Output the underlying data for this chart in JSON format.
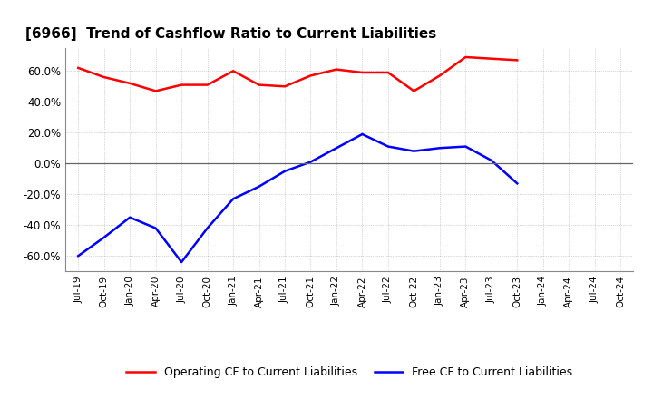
{
  "title": "[6966]  Trend of Cashflow Ratio to Current Liabilities",
  "x_labels": [
    "Jul-19",
    "Oct-19",
    "Jan-20",
    "Apr-20",
    "Jul-20",
    "Oct-20",
    "Jan-21",
    "Apr-21",
    "Jul-21",
    "Oct-21",
    "Jan-22",
    "Apr-22",
    "Jul-22",
    "Oct-22",
    "Jan-23",
    "Apr-23",
    "Jul-23",
    "Oct-23",
    "Jan-24",
    "Apr-24",
    "Jul-24",
    "Oct-24"
  ],
  "operating_cf": [
    0.62,
    0.56,
    0.52,
    0.47,
    0.51,
    0.51,
    0.6,
    0.51,
    0.5,
    0.57,
    0.61,
    0.59,
    0.59,
    0.47,
    0.57,
    0.69,
    0.68,
    0.67,
    null,
    null,
    null,
    null
  ],
  "free_cf": [
    -0.6,
    -0.48,
    -0.35,
    -0.42,
    -0.64,
    -0.42,
    -0.23,
    -0.15,
    -0.05,
    0.01,
    0.1,
    0.19,
    0.11,
    0.08,
    0.1,
    0.11,
    0.02,
    -0.13,
    null,
    null,
    null,
    null
  ],
  "operating_color": "#FF0000",
  "free_color": "#0000FF",
  "ylim": [
    -0.7,
    0.75
  ],
  "yticks": [
    -0.6,
    -0.4,
    -0.2,
    0.0,
    0.2,
    0.4,
    0.6
  ],
  "background_color": "#FFFFFF",
  "plot_bg_color": "#FFFFFF",
  "grid_color": "#999999",
  "legend_labels": [
    "Operating CF to Current Liabilities",
    "Free CF to Current Liabilities"
  ]
}
